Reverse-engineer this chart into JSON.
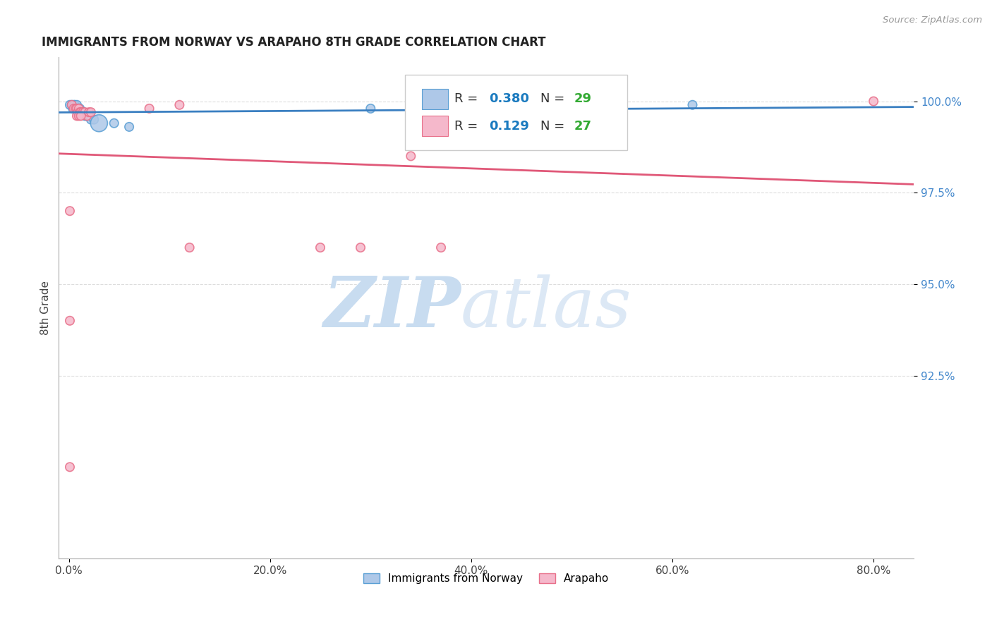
{
  "title": "IMMIGRANTS FROM NORWAY VS ARAPAHO 8TH GRADE CORRELATION CHART",
  "source": "Source: ZipAtlas.com",
  "xlabel_ticks": [
    "0.0%",
    "20.0%",
    "40.0%",
    "60.0%",
    "80.0%"
  ],
  "xlabel_tick_values": [
    0.0,
    0.2,
    0.4,
    0.6,
    0.8
  ],
  "ylabel": "8th Grade",
  "ylabel_ticks": [
    "92.5%",
    "95.0%",
    "97.5%",
    "100.0%"
  ],
  "ylabel_tick_values": [
    0.925,
    0.95,
    0.975,
    1.0
  ],
  "xlim": [
    -0.01,
    0.84
  ],
  "ylim": [
    0.875,
    1.012
  ],
  "blue_R": 0.38,
  "blue_N": 29,
  "pink_R": 0.129,
  "pink_N": 27,
  "blue_color": "#aec8e8",
  "pink_color": "#f5b8cb",
  "blue_edge_color": "#5a9fd4",
  "pink_edge_color": "#e8708a",
  "blue_line_color": "#3a7fc1",
  "pink_line_color": "#e05878",
  "legend_R_color": "#1a7abf",
  "legend_N_color": "#33aa33",
  "blue_scatter_x": [
    0.001,
    0.003,
    0.004,
    0.005,
    0.006,
    0.007,
    0.008,
    0.008,
    0.009,
    0.01,
    0.01,
    0.011,
    0.011,
    0.012,
    0.013,
    0.014,
    0.015,
    0.016,
    0.017,
    0.018,
    0.02,
    0.022,
    0.025,
    0.03,
    0.045,
    0.06,
    0.3,
    0.345,
    0.62
  ],
  "blue_scatter_y": [
    0.999,
    0.999,
    0.998,
    0.999,
    0.999,
    0.998,
    0.998,
    0.999,
    0.998,
    0.998,
    0.998,
    0.998,
    0.997,
    0.997,
    0.997,
    0.997,
    0.997,
    0.996,
    0.996,
    0.996,
    0.996,
    0.995,
    0.995,
    0.994,
    0.994,
    0.993,
    0.998,
    0.997,
    0.999
  ],
  "blue_scatter_sizes": [
    80,
    80,
    80,
    80,
    80,
    80,
    80,
    80,
    80,
    80,
    80,
    80,
    80,
    80,
    80,
    80,
    80,
    80,
    80,
    80,
    80,
    80,
    80,
    300,
    80,
    80,
    80,
    80,
    80
  ],
  "pink_scatter_x": [
    0.001,
    0.003,
    0.005,
    0.007,
    0.008,
    0.009,
    0.01,
    0.011,
    0.012,
    0.014,
    0.016,
    0.018,
    0.02,
    0.022,
    0.12,
    0.29,
    0.37,
    0.001,
    0.08,
    0.11,
    0.34,
    0.8,
    0.001,
    0.25,
    0.008,
    0.01,
    0.012
  ],
  "pink_scatter_y": [
    0.97,
    0.999,
    0.998,
    0.998,
    0.998,
    0.997,
    0.998,
    0.997,
    0.997,
    0.997,
    0.997,
    0.996,
    0.997,
    0.997,
    0.96,
    0.96,
    0.96,
    0.94,
    0.998,
    0.999,
    0.985,
    1.0,
    0.9,
    0.96,
    0.996,
    0.996,
    0.996
  ],
  "pink_scatter_sizes": [
    80,
    80,
    80,
    80,
    80,
    80,
    80,
    80,
    80,
    80,
    80,
    80,
    80,
    80,
    80,
    80,
    80,
    80,
    80,
    80,
    80,
    80,
    80,
    80,
    80,
    80,
    80
  ],
  "watermark_zip": "ZIP",
  "watermark_atlas": "atlas",
  "legend_items": [
    "Immigrants from Norway",
    "Arapaho"
  ],
  "grid_color": "#dddddd",
  "background_color": "#ffffff"
}
